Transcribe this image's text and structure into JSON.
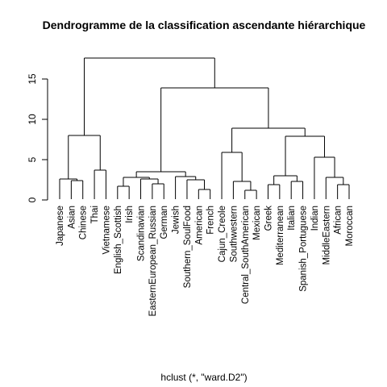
{
  "chart_data": {
    "type": "dendrogram",
    "title": "Dendrogramme de la classification ascendante hiérarchique",
    "subtitle": "hclust (*, \"ward.D2\")",
    "ylim": [
      0,
      18
    ],
    "yticks": [
      0,
      5,
      10,
      15
    ],
    "leaves": [
      "Japanese",
      "Asian",
      "Chinese",
      "Thai",
      "Vietnamese",
      "English_Scottish",
      "Irish",
      "Scandinavian",
      "EasternEuropean_Russian",
      "German",
      "Jewish",
      "Southern_SoulFood",
      "American",
      "French",
      "Cajun_Creole",
      "Southwestern",
      "Central_SouthAmerican",
      "Mexican",
      "Greek",
      "Mediterranean",
      "Italian",
      "Spanish_Portuguese",
      "Indian",
      "MiddleEastern",
      "African",
      "Moroccan"
    ],
    "merges": [
      {
        "a": [
          "leaf",
          1
        ],
        "b": [
          "leaf",
          2
        ],
        "height": 2.4
      },
      {
        "a": [
          "leaf",
          0
        ],
        "b": [
          "merge",
          0
        ],
        "height": 2.6
      },
      {
        "a": [
          "leaf",
          3
        ],
        "b": [
          "leaf",
          4
        ],
        "height": 3.7
      },
      {
        "a": [
          "merge",
          1
        ],
        "b": [
          "merge",
          2
        ],
        "height": 8.0
      },
      {
        "a": [
          "leaf",
          5
        ],
        "b": [
          "leaf",
          6
        ],
        "height": 1.7
      },
      {
        "a": [
          "leaf",
          8
        ],
        "b": [
          "leaf",
          9
        ],
        "height": 2.0
      },
      {
        "a": [
          "leaf",
          7
        ],
        "b": [
          "merge",
          5
        ],
        "height": 2.6
      },
      {
        "a": [
          "merge",
          4
        ],
        "b": [
          "merge",
          6
        ],
        "height": 2.8
      },
      {
        "a": [
          "leaf",
          12
        ],
        "b": [
          "leaf",
          13
        ],
        "height": 1.3
      },
      {
        "a": [
          "leaf",
          11
        ],
        "b": [
          "merge",
          8
        ],
        "height": 2.5
      },
      {
        "a": [
          "leaf",
          10
        ],
        "b": [
          "merge",
          9
        ],
        "height": 2.9
      },
      {
        "a": [
          "merge",
          7
        ],
        "b": [
          "merge",
          10
        ],
        "height": 3.5
      },
      {
        "a": [
          "leaf",
          16
        ],
        "b": [
          "leaf",
          17
        ],
        "height": 1.2
      },
      {
        "a": [
          "leaf",
          15
        ],
        "b": [
          "merge",
          12
        ],
        "height": 2.3
      },
      {
        "a": [
          "leaf",
          14
        ],
        "b": [
          "merge",
          13
        ],
        "height": 5.9
      },
      {
        "a": [
          "leaf",
          18
        ],
        "b": [
          "leaf",
          19
        ],
        "height": 1.9
      },
      {
        "a": [
          "leaf",
          20
        ],
        "b": [
          "leaf",
          21
        ],
        "height": 2.3
      },
      {
        "a": [
          "merge",
          15
        ],
        "b": [
          "merge",
          16
        ],
        "height": 3.0
      },
      {
        "a": [
          "leaf",
          24
        ],
        "b": [
          "leaf",
          25
        ],
        "height": 1.9
      },
      {
        "a": [
          "leaf",
          23
        ],
        "b": [
          "merge",
          18
        ],
        "height": 2.8
      },
      {
        "a": [
          "leaf",
          22
        ],
        "b": [
          "merge",
          19
        ],
        "height": 5.3
      },
      {
        "a": [
          "merge",
          17
        ],
        "b": [
          "merge",
          20
        ],
        "height": 7.9
      },
      {
        "a": [
          "merge",
          14
        ],
        "b": [
          "merge",
          21
        ],
        "height": 8.9
      },
      {
        "a": [
          "merge",
          11
        ],
        "b": [
          "merge",
          22
        ],
        "height": 13.9
      },
      {
        "a": [
          "merge",
          3
        ],
        "b": [
          "merge",
          23
        ],
        "height": 17.6
      }
    ]
  }
}
